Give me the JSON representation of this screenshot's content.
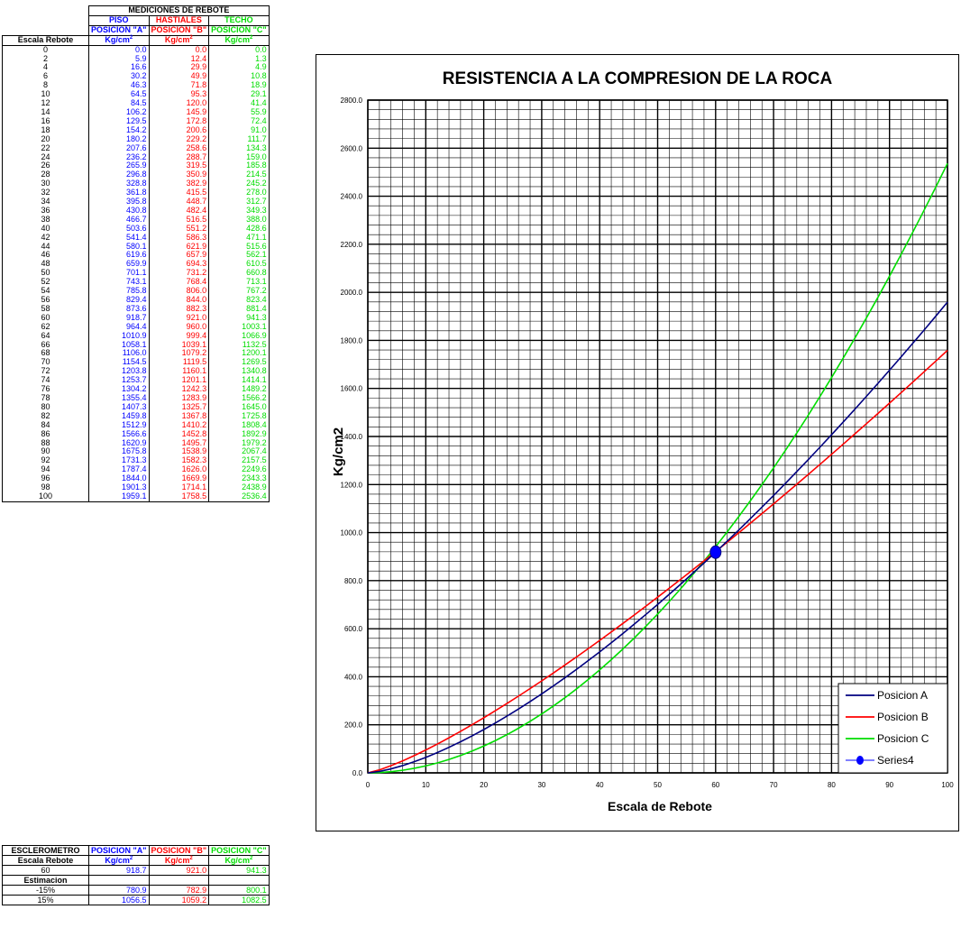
{
  "table": {
    "group_header": "MEDICIONES DE REBOTE",
    "col_names": [
      "PISO",
      "HASTIALES",
      "TECHO"
    ],
    "col_positions": [
      "POSICION \"A\"",
      "POSICION \"B\"",
      "POSICION \"C\""
    ],
    "escala_label": "Escala Rebote",
    "unit_label": "Kg/cm",
    "unit_sup": "2",
    "rows": [
      [
        "0",
        "0.0",
        "0.0",
        "0.0"
      ],
      [
        "2",
        "5.9",
        "12.4",
        "1.3"
      ],
      [
        "4",
        "16.6",
        "29.9",
        "4.9"
      ],
      [
        "6",
        "30.2",
        "49.9",
        "10.8"
      ],
      [
        "8",
        "46.3",
        "71.8",
        "18.9"
      ],
      [
        "10",
        "64.5",
        "95.3",
        "29.1"
      ],
      [
        "12",
        "84.5",
        "120.0",
        "41.4"
      ],
      [
        "14",
        "106.2",
        "145.9",
        "55.9"
      ],
      [
        "16",
        "129.5",
        "172.8",
        "72.4"
      ],
      [
        "18",
        "154.2",
        "200.6",
        "91.0"
      ],
      [
        "20",
        "180.2",
        "229.2",
        "111.7"
      ],
      [
        "22",
        "207.6",
        "258.6",
        "134.3"
      ],
      [
        "24",
        "236.2",
        "288.7",
        "159.0"
      ],
      [
        "26",
        "265.9",
        "319.5",
        "185.8"
      ],
      [
        "28",
        "296.8",
        "350.9",
        "214.5"
      ],
      [
        "30",
        "328.8",
        "382.9",
        "245.2"
      ],
      [
        "32",
        "361.8",
        "415.5",
        "278.0"
      ],
      [
        "34",
        "395.8",
        "448.7",
        "312.7"
      ],
      [
        "36",
        "430.8",
        "482.4",
        "349.3"
      ],
      [
        "38",
        "466.7",
        "516.5",
        "388.0"
      ],
      [
        "40",
        "503.6",
        "551.2",
        "428.6"
      ],
      [
        "42",
        "541.4",
        "586.3",
        "471.1"
      ],
      [
        "44",
        "580.1",
        "621.9",
        "515.6"
      ],
      [
        "46",
        "619.6",
        "657.9",
        "562.1"
      ],
      [
        "48",
        "659.9",
        "694.3",
        "610.5"
      ],
      [
        "50",
        "701.1",
        "731.2",
        "660.8"
      ],
      [
        "52",
        "743.1",
        "768.4",
        "713.1"
      ],
      [
        "54",
        "785.8",
        "806.0",
        "767.2"
      ],
      [
        "56",
        "829.4",
        "844.0",
        "823.4"
      ],
      [
        "58",
        "873.6",
        "882.3",
        "881.4"
      ],
      [
        "60",
        "918.7",
        "921.0",
        "941.3"
      ],
      [
        "62",
        "964.4",
        "960.0",
        "1003.1"
      ],
      [
        "64",
        "1010.9",
        "999.4",
        "1066.9"
      ],
      [
        "66",
        "1058.1",
        "1039.1",
        "1132.5"
      ],
      [
        "68",
        "1106.0",
        "1079.2",
        "1200.1"
      ],
      [
        "70",
        "1154.5",
        "1119.5",
        "1269.5"
      ],
      [
        "72",
        "1203.8",
        "1160.1",
        "1340.8"
      ],
      [
        "74",
        "1253.7",
        "1201.1",
        "1414.1"
      ],
      [
        "76",
        "1304.2",
        "1242.3",
        "1489.2"
      ],
      [
        "78",
        "1355.4",
        "1283.9",
        "1566.2"
      ],
      [
        "80",
        "1407.3",
        "1325.7",
        "1645.0"
      ],
      [
        "82",
        "1459.8",
        "1367.8",
        "1725.8"
      ],
      [
        "84",
        "1512.9",
        "1410.2",
        "1808.4"
      ],
      [
        "86",
        "1566.6",
        "1452.8",
        "1892.9"
      ],
      [
        "88",
        "1620.9",
        "1495.7",
        "1979.2"
      ],
      [
        "90",
        "1675.8",
        "1538.9",
        "2067.4"
      ],
      [
        "92",
        "1731.3",
        "1582.3",
        "2157.5"
      ],
      [
        "94",
        "1787.4",
        "1626.0",
        "2249.6"
      ],
      [
        "96",
        "1844.0",
        "1669.9",
        "2343.3"
      ],
      [
        "98",
        "1901.3",
        "1714.1",
        "2438.9"
      ],
      [
        "100",
        "1959.1",
        "1758.5",
        "2536.4"
      ]
    ]
  },
  "summary": {
    "col0_header": "ESCLEROMETRO",
    "col_positions": [
      "POSICION \"A\"",
      "POSICION \"B\"",
      "POSICION \"C\""
    ],
    "escala_label": "Escala Rebote",
    "unit_label": "Kg/cm",
    "unit_sup": "2",
    "value_row": [
      "60",
      "918.7",
      "921.0",
      "941.3"
    ],
    "estimacion_label": "Estimacion",
    "est_rows": [
      [
        "-15%",
        "780.9",
        "782.9",
        "800.1"
      ],
      [
        "15%",
        "1056.5",
        "1059.2",
        "1082.5"
      ]
    ]
  },
  "colors": {
    "blue": "#0000ff",
    "red": "#ff0000",
    "green": "#00dd00",
    "navy": "#000080"
  },
  "chart_data": {
    "type": "line",
    "title": "RESISTENCIA A LA COMPRESION DE LA ROCA",
    "xlabel": "Escala de Rebote",
    "ylabel": "Kg/cm2",
    "xlim": [
      0,
      100
    ],
    "ylim": [
      0,
      2800
    ],
    "x_ticks": [
      "0",
      "10",
      "20",
      "30",
      "40",
      "50",
      "60",
      "70",
      "80",
      "90",
      "100"
    ],
    "y_ticks": [
      "0.0",
      "200.0",
      "400.0",
      "600.0",
      "800.0",
      "1000.0",
      "1200.0",
      "1400.0",
      "1600.0",
      "1800.0",
      "2000.0",
      "2200.0",
      "2400.0",
      "2600.0",
      "2800.0"
    ],
    "grid": true,
    "legend_position": "bottom-right",
    "x": [
      0,
      2,
      4,
      6,
      8,
      10,
      12,
      14,
      16,
      18,
      20,
      22,
      24,
      26,
      28,
      30,
      32,
      34,
      36,
      38,
      40,
      42,
      44,
      46,
      48,
      50,
      52,
      54,
      56,
      58,
      60,
      62,
      64,
      66,
      68,
      70,
      72,
      74,
      76,
      78,
      80,
      82,
      84,
      86,
      88,
      90,
      92,
      94,
      96,
      98,
      100
    ],
    "series": [
      {
        "name": "Posicion A",
        "color": "#000080",
        "values": [
          0.0,
          5.9,
          16.6,
          30.2,
          46.3,
          64.5,
          84.5,
          106.2,
          129.5,
          154.2,
          180.2,
          207.6,
          236.2,
          265.9,
          296.8,
          328.8,
          361.8,
          395.8,
          430.8,
          466.7,
          503.6,
          541.4,
          580.1,
          619.6,
          659.9,
          701.1,
          743.1,
          785.8,
          829.4,
          873.6,
          918.7,
          964.4,
          1010.9,
          1058.1,
          1106.0,
          1154.5,
          1203.8,
          1253.7,
          1304.2,
          1355.4,
          1407.3,
          1459.8,
          1512.9,
          1566.6,
          1620.9,
          1675.8,
          1731.3,
          1787.4,
          1844.0,
          1901.3,
          1959.1
        ]
      },
      {
        "name": "Posicion B",
        "color": "#ff0000",
        "values": [
          0.0,
          12.4,
          29.9,
          49.9,
          71.8,
          95.3,
          120.0,
          145.9,
          172.8,
          200.6,
          229.2,
          258.6,
          288.7,
          319.5,
          350.9,
          382.9,
          415.5,
          448.7,
          482.4,
          516.5,
          551.2,
          586.3,
          621.9,
          657.9,
          694.3,
          731.2,
          768.4,
          806.0,
          844.0,
          882.3,
          921.0,
          960.0,
          999.4,
          1039.1,
          1079.2,
          1119.5,
          1160.1,
          1201.1,
          1242.3,
          1283.9,
          1325.7,
          1367.8,
          1410.2,
          1452.8,
          1495.7,
          1538.9,
          1582.3,
          1626.0,
          1669.9,
          1714.1,
          1758.5
        ]
      },
      {
        "name": "Posicion C",
        "color": "#00dd00",
        "values": [
          0.0,
          1.3,
          4.9,
          10.8,
          18.9,
          29.1,
          41.4,
          55.9,
          72.4,
          91.0,
          111.7,
          134.3,
          159.0,
          185.8,
          214.5,
          245.2,
          278.0,
          312.7,
          349.3,
          388.0,
          428.6,
          471.1,
          515.6,
          562.1,
          610.5,
          660.8,
          713.1,
          767.2,
          823.4,
          881.4,
          941.3,
          1003.1,
          1066.9,
          1132.5,
          1200.1,
          1269.5,
          1340.8,
          1414.1,
          1489.2,
          1566.2,
          1645.0,
          1725.8,
          1808.4,
          1892.9,
          1979.2,
          2067.4,
          2157.5,
          2249.6,
          2343.3,
          2438.9,
          2536.4
        ]
      }
    ],
    "point_series": {
      "name": "Series4",
      "color": "#0000ff",
      "x": 60,
      "y": 918.7
    }
  }
}
